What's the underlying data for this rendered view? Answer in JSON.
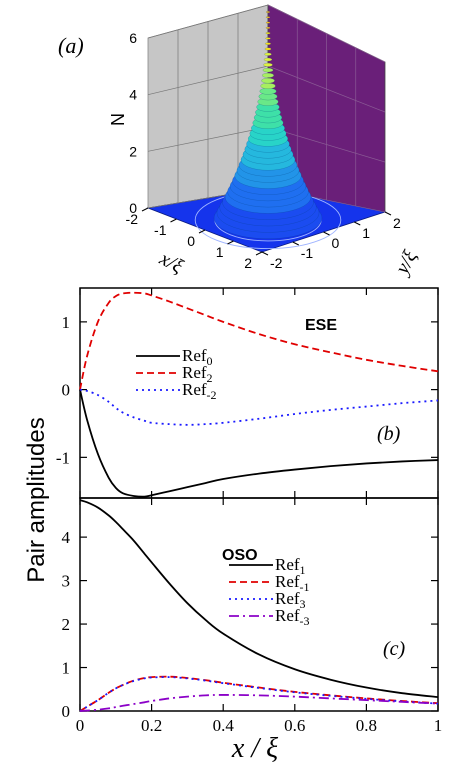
{
  "figure": {
    "shared_ylabel": "Pair amplitudes",
    "shared_xlabel": "x / ξ"
  },
  "chart_data": [
    {
      "panel": "(a)",
      "type": "surface",
      "zlabel": "N",
      "xlabel": "x/ξ",
      "ylabel": "y/ξ",
      "x_ticks": [
        "-2",
        "-1",
        "0",
        "1",
        "2"
      ],
      "y_ticks": [
        "-2",
        "-1",
        "0",
        "1",
        "2"
      ],
      "z_ticks": [
        "0",
        "2",
        "4",
        "6"
      ],
      "xlim": [
        -2,
        2
      ],
      "ylim": [
        -2,
        2
      ],
      "zlim": [
        0,
        6
      ],
      "peak": 6,
      "colors": {
        "floor": "#1432e8",
        "back_wall": "#6b1f7a",
        "side_wall": "#c8c8c8"
      }
    },
    {
      "panel": "(b)",
      "type": "line",
      "title": "ESE",
      "xlim": [
        0,
        1
      ],
      "ylim": [
        -1.6,
        1.5
      ],
      "y_ticks": [
        1,
        0,
        -1
      ],
      "x": [
        0,
        0.02,
        0.05,
        0.08,
        0.1,
        0.12,
        0.15,
        0.18,
        0.2,
        0.25,
        0.3,
        0.35,
        0.4,
        0.5,
        0.6,
        0.7,
        0.8,
        0.9,
        1.0
      ],
      "series": [
        {
          "name": "Ref0",
          "label_base": "Ref",
          "label_sub": "0",
          "color": "#000000",
          "dash": "solid",
          "values": [
            0,
            -0.45,
            -0.95,
            -1.3,
            -1.45,
            -1.53,
            -1.57,
            -1.58,
            -1.56,
            -1.5,
            -1.44,
            -1.38,
            -1.32,
            -1.24,
            -1.18,
            -1.13,
            -1.09,
            -1.06,
            -1.04
          ]
        },
        {
          "name": "Ref2",
          "label_base": "Ref",
          "label_sub": "2",
          "color": "#e00000",
          "dash": "dashed",
          "values": [
            0,
            0.5,
            1.0,
            1.28,
            1.38,
            1.42,
            1.43,
            1.42,
            1.39,
            1.3,
            1.2,
            1.1,
            1.0,
            0.82,
            0.67,
            0.55,
            0.44,
            0.35,
            0.27
          ]
        },
        {
          "name": "Ref-2",
          "label_base": "Ref",
          "label_sub": "-2",
          "color": "#1a1aff",
          "dash": "dotted",
          "values": [
            0,
            -0.02,
            -0.08,
            -0.18,
            -0.27,
            -0.34,
            -0.41,
            -0.46,
            -0.49,
            -0.51,
            -0.52,
            -0.51,
            -0.49,
            -0.43,
            -0.36,
            -0.3,
            -0.25,
            -0.2,
            -0.16
          ]
        }
      ]
    },
    {
      "panel": "(c)",
      "type": "line",
      "title": "OSO",
      "xlim": [
        0,
        1
      ],
      "ylim": [
        0,
        4.9
      ],
      "x_ticks": [
        "0",
        "0.2",
        "0.4",
        "0.6",
        "0.8",
        "1"
      ],
      "y_ticks": [
        4,
        3,
        2,
        1,
        0
      ],
      "x": [
        0,
        0.02,
        0.05,
        0.08,
        0.1,
        0.12,
        0.15,
        0.18,
        0.2,
        0.25,
        0.3,
        0.35,
        0.4,
        0.5,
        0.6,
        0.7,
        0.8,
        0.9,
        1.0
      ],
      "series": [
        {
          "name": "Ref1",
          "label_base": "Ref",
          "label_sub": "1",
          "color": "#000000",
          "dash": "solid",
          "values": [
            4.85,
            4.8,
            4.68,
            4.5,
            4.35,
            4.18,
            3.92,
            3.62,
            3.42,
            2.93,
            2.48,
            2.1,
            1.78,
            1.3,
            0.96,
            0.72,
            0.54,
            0.41,
            0.32
          ]
        },
        {
          "name": "Ref-1",
          "label_base": "Ref",
          "label_sub": "-1",
          "color": "#e00000",
          "dash": "dashed",
          "values": [
            0,
            0.1,
            0.25,
            0.42,
            0.52,
            0.6,
            0.7,
            0.76,
            0.78,
            0.79,
            0.76,
            0.71,
            0.65,
            0.54,
            0.44,
            0.36,
            0.29,
            0.23,
            0.18
          ]
        },
        {
          "name": "Ref3",
          "label_base": "Ref",
          "label_sub": "3",
          "color": "#1a1aff",
          "dash": "dotted",
          "values": [
            0,
            0.1,
            0.25,
            0.42,
            0.52,
            0.6,
            0.69,
            0.75,
            0.77,
            0.78,
            0.75,
            0.7,
            0.64,
            0.53,
            0.43,
            0.35,
            0.28,
            0.22,
            0.17
          ]
        },
        {
          "name": "Ref-3",
          "label_base": "Ref",
          "label_sub": "-3",
          "color": "#8b00c8",
          "dash": "dashdot",
          "values": [
            0,
            0.01,
            0.03,
            0.06,
            0.09,
            0.12,
            0.16,
            0.2,
            0.23,
            0.29,
            0.33,
            0.36,
            0.37,
            0.36,
            0.33,
            0.29,
            0.25,
            0.21,
            0.17
          ]
        }
      ]
    }
  ]
}
